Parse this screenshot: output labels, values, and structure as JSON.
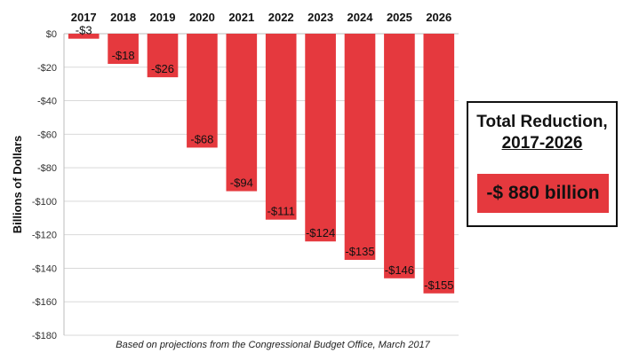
{
  "chart_data": {
    "type": "bar",
    "categories": [
      "2017",
      "2018",
      "2019",
      "2020",
      "2021",
      "2022",
      "2023",
      "2024",
      "2025",
      "2026"
    ],
    "values": [
      -3,
      -18,
      -26,
      -68,
      -94,
      -111,
      -124,
      -135,
      -146,
      -155
    ],
    "data_labels": [
      "-$3",
      "-$18",
      "-$26",
      "-$68",
      "-$94",
      "-$111",
      "-$124",
      "-$135",
      "-$146",
      "-$155"
    ],
    "ylabel": "Billions of Dollars",
    "ylim": [
      -180,
      0
    ],
    "yticks": [
      0,
      -20,
      -40,
      -60,
      -80,
      -100,
      -120,
      -140,
      -160,
      -180
    ],
    "ytick_labels": [
      "$0",
      "-$20",
      "-$40",
      "-$60",
      "-$80",
      "-$100",
      "-$120",
      "-$140",
      "-$160",
      "-$180"
    ],
    "x_axis_position": "top",
    "grid": true,
    "bar_color": "#e5393e",
    "source_note": "Based on projections from the Congressional Budget Office, March 2017"
  },
  "summary": {
    "title_line1": "Total Reduction,",
    "title_line2": "2017-2026",
    "value": "-$ 880 billion",
    "color": "#e5393e"
  }
}
